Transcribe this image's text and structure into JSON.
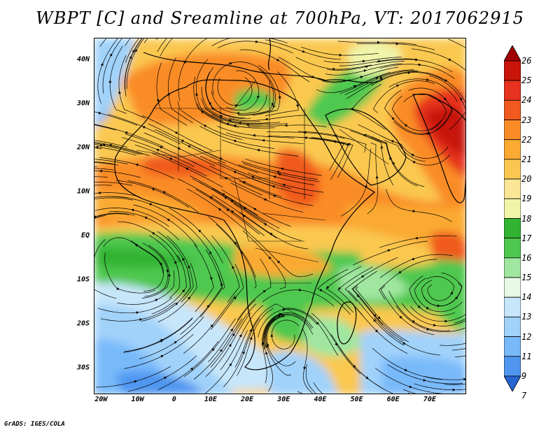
{
  "title": "WBPT [C] and Sreamline at 700hPa, VT: 2017062915",
  "credit": "GrADS: IGES/COLA",
  "map": {
    "lon_range": [
      -22,
      80
    ],
    "lat_range": [
      -36,
      45
    ],
    "lat_ticks": [
      {
        "label": "40N",
        "value": 40
      },
      {
        "label": "30N",
        "value": 30
      },
      {
        "label": "20N",
        "value": 20
      },
      {
        "label": "10N",
        "value": 10
      },
      {
        "label": "EQ",
        "value": 0
      },
      {
        "label": "10S",
        "value": -10
      },
      {
        "label": "20S",
        "value": -20
      },
      {
        "label": "30S",
        "value": -30
      }
    ],
    "lon_ticks": [
      {
        "label": "20W",
        "value": -20
      },
      {
        "label": "10W",
        "value": -10
      },
      {
        "label": "0",
        "value": 0
      },
      {
        "label": "10E",
        "value": 10
      },
      {
        "label": "20E",
        "value": 20
      },
      {
        "label": "30E",
        "value": 30
      },
      {
        "label": "40E",
        "value": 40
      },
      {
        "label": "50E",
        "value": 50
      },
      {
        "label": "60E",
        "value": 60
      },
      {
        "label": "70E",
        "value": 70
      }
    ]
  },
  "colorbar": {
    "levels": [
      "26",
      "25",
      "24",
      "23",
      "22",
      "21",
      "20",
      "19",
      "18",
      "17",
      "16",
      "15",
      "14",
      "13",
      "12",
      "11",
      "9",
      "7"
    ],
    "colors": [
      "#a00000",
      "#c8140a",
      "#e6321e",
      "#f05a1e",
      "#fa8c28",
      "#faaa32",
      "#fac850",
      "#fae696",
      "#f0f5aa",
      "#32b432",
      "#50c850",
      "#a0e6a0",
      "#e6fae6",
      "#c8e6fa",
      "#a0d2fa",
      "#78b9fa",
      "#5096f0",
      "#2864d2"
    ]
  }
}
